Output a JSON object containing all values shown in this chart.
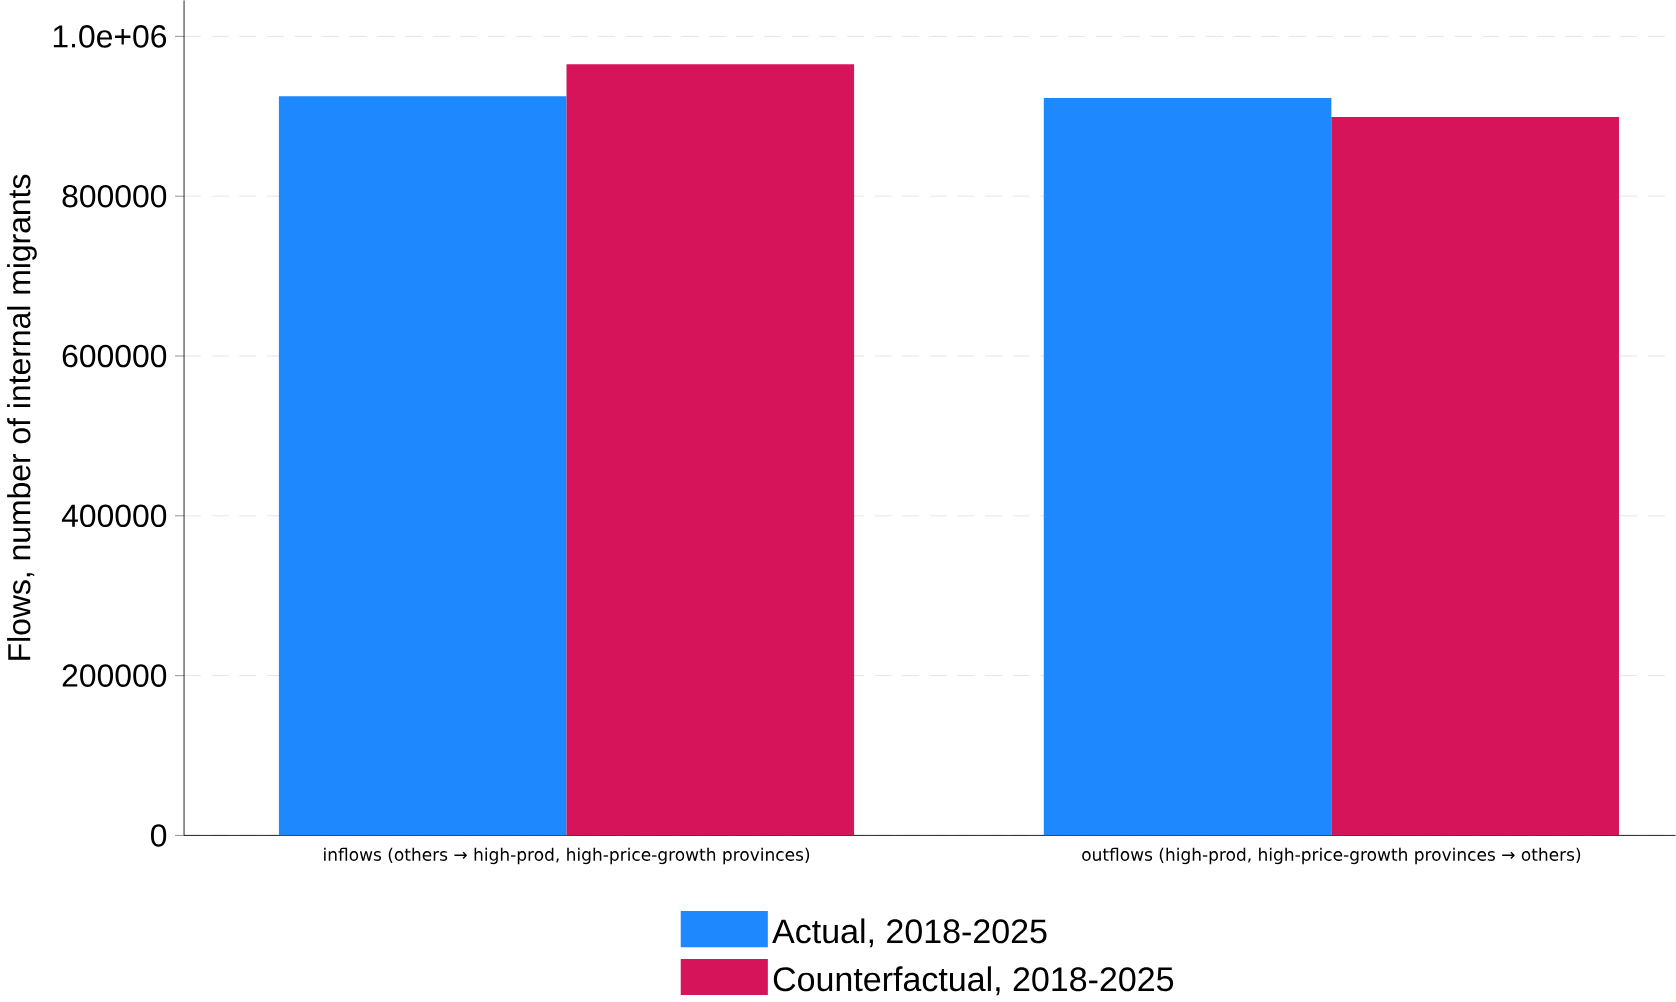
{
  "chart_data": {
    "type": "bar",
    "ylabel": "Flows, number of internal migrants",
    "categories": [
      "inflows (others → high-prod, high-price-growth provinces)",
      "outflows (high-prod, high-price-growth provinces → others)"
    ],
    "series": [
      {
        "name": "Actual, 2018-2025",
        "color": "#1e88ff",
        "values": [
          925000,
          923000
        ]
      },
      {
        "name": "Counterfactual, 2018-2025",
        "color": "#d5145a",
        "values": [
          965000,
          899000
        ]
      }
    ],
    "ylim": [
      0,
      1045000
    ],
    "yticks": [
      0,
      200000,
      400000,
      600000,
      800000,
      {
        "value": 1000000,
        "label": "1.0e+06"
      }
    ],
    "grid": "y",
    "legend": "bottom"
  }
}
